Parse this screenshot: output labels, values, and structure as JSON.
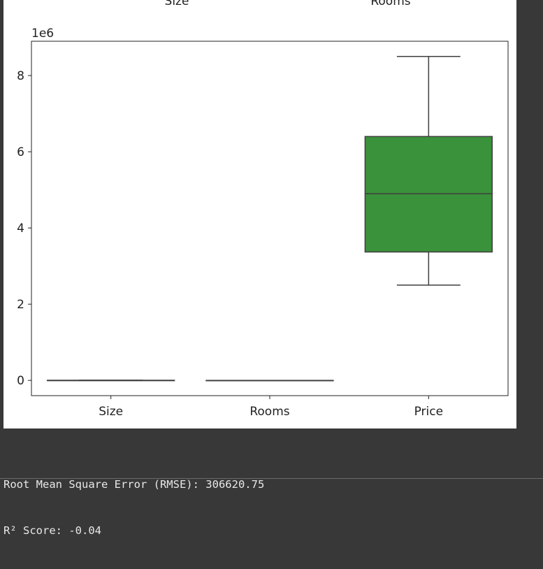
{
  "output": {
    "lines": [
      {
        "prefix": "Root Mean Square Error (RMSE): ",
        "value": "306620.75"
      },
      {
        "prefix": "R² Score: ",
        "value": "-0.04"
      }
    ]
  },
  "figure": {
    "previous_subplot_titles": [
      "Size",
      "Rooms"
    ]
  },
  "chart_data": {
    "type": "box",
    "categories": [
      "Size",
      "Rooms",
      "Price"
    ],
    "y_offset_label": "1e6",
    "y_ticks": [
      "0",
      "2",
      "4",
      "6",
      "8"
    ],
    "ylim": [
      -0.4,
      8.9
    ],
    "y_scale": 1000000,
    "grid": false,
    "boxes": [
      {
        "name": "Size",
        "min": 0.0003,
        "q1": 0.0012,
        "median": 0.0016,
        "q3": 0.002,
        "max": 0.0032,
        "color": "#1f77b4"
      },
      {
        "name": "Rooms",
        "min": 1e-06,
        "q1": 2e-06,
        "median": 3e-06,
        "q3": 4e-06,
        "max": 6e-06,
        "color": "#ff7f0e"
      },
      {
        "name": "Price",
        "min": 2.5,
        "q1": 3.37,
        "median": 4.9,
        "q3": 6.4,
        "max": 8.5,
        "color": "#3a923a"
      }
    ]
  }
}
